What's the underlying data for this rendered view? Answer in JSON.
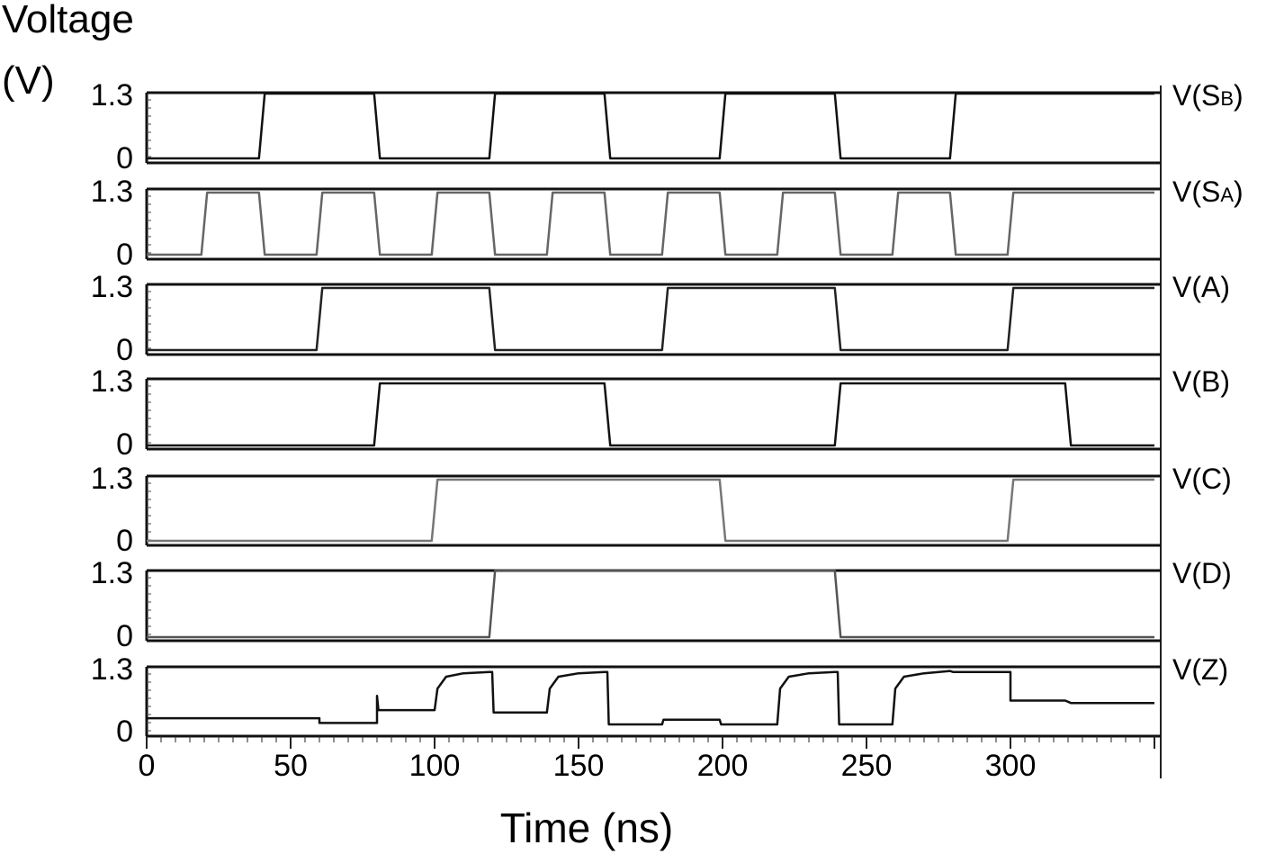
{
  "chart_data": {
    "type": "line",
    "ylabel_line1": "Voltage",
    "ylabel_line2": "(V)",
    "xlabel": "Time (ns)",
    "xlim": [
      0,
      350
    ],
    "xticks": [
      "0",
      "50",
      "100",
      "150",
      "200",
      "250",
      "300"
    ],
    "ytick_high": "1.3",
    "ytick_low": "0",
    "ylim": [
      0,
      1.3
    ],
    "series": [
      {
        "name": "V(SB)",
        "label_main": "V(S",
        "label_sub": "B",
        "label_close": ")",
        "color": "#111111",
        "x": [
          0,
          39,
          41,
          79,
          81,
          119,
          121,
          159,
          161,
          199,
          201,
          239,
          241,
          279,
          281,
          350
        ],
        "y": [
          0,
          0,
          1.3,
          1.3,
          0,
          0,
          1.3,
          1.3,
          0,
          0,
          1.3,
          1.3,
          0,
          0,
          1.3,
          1.3
        ]
      },
      {
        "name": "V(SA)",
        "label_main": "V(S",
        "label_sub": "A",
        "label_close": ")",
        "color": "#666666",
        "x": [
          0,
          19,
          21,
          39,
          41,
          59,
          61,
          79,
          81,
          99,
          101,
          119,
          121,
          139,
          141,
          159,
          161,
          179,
          181,
          199,
          201,
          219,
          221,
          239,
          241,
          259,
          261,
          279,
          281,
          299,
          301,
          350
        ],
        "y": [
          0,
          0,
          1.3,
          1.3,
          0,
          0,
          1.3,
          1.3,
          0,
          0,
          1.3,
          1.3,
          0,
          0,
          1.3,
          1.3,
          0,
          0,
          1.3,
          1.3,
          0,
          0,
          1.3,
          1.3,
          0,
          0,
          1.3,
          1.3,
          0,
          0,
          1.3,
          1.3
        ]
      },
      {
        "name": "V(A)",
        "label_main": "V(A)",
        "label_sub": "",
        "label_close": "",
        "color": "#222222",
        "x": [
          0,
          59,
          61,
          119,
          121,
          179,
          181,
          239,
          241,
          299,
          301,
          350
        ],
        "y": [
          0,
          0,
          1.3,
          1.3,
          0,
          0,
          1.3,
          1.3,
          0,
          0,
          1.3,
          1.3
        ]
      },
      {
        "name": "V(B)",
        "label_main": "V(B)",
        "label_sub": "",
        "label_close": "",
        "color": "#111111",
        "x": [
          0,
          79,
          81,
          159,
          161,
          239,
          241,
          319,
          321,
          350
        ],
        "y": [
          0,
          0,
          1.3,
          1.3,
          0,
          0,
          1.3,
          1.3,
          0,
          0
        ]
      },
      {
        "name": "V(C)",
        "label_main": "V(C)",
        "label_sub": "",
        "label_close": "",
        "color": "#777777",
        "x": [
          0,
          99,
          101,
          199,
          201,
          299,
          301,
          350
        ],
        "y": [
          0,
          0,
          1.3,
          1.3,
          0,
          0,
          1.3,
          1.3
        ]
      },
      {
        "name": "V(D)",
        "label_main": "V(D)",
        "label_sub": "",
        "label_close": "",
        "color": "#555555",
        "x": [
          0,
          119,
          121,
          239,
          241,
          350
        ],
        "y": [
          0,
          0,
          1.3,
          1.3,
          0,
          0
        ]
      },
      {
        "name": "V(Z)",
        "label_main": "V(Z)",
        "label_sub": "",
        "label_close": "",
        "color": "#111111",
        "x": [
          0,
          60,
          60,
          80,
          80,
          80.5,
          81,
          100,
          101,
          104,
          110,
          119,
          120,
          120.5,
          139,
          140,
          143,
          150,
          159,
          160,
          160.5,
          179,
          179.5,
          199,
          199.5,
          200,
          219,
          220,
          223,
          230,
          239,
          240,
          240.5,
          259,
          260,
          263,
          270,
          279,
          280,
          299,
          300,
          300,
          319,
          321,
          350
        ],
        "y": [
          0.28,
          0.28,
          0.18,
          0.18,
          0.75,
          0.45,
          0.45,
          0.45,
          0.9,
          1.15,
          1.22,
          1.25,
          1.25,
          0.4,
          0.4,
          0.9,
          1.15,
          1.22,
          1.25,
          1.25,
          0.15,
          0.15,
          0.25,
          0.25,
          0.15,
          0.15,
          0.15,
          0.9,
          1.15,
          1.22,
          1.25,
          1.25,
          0.15,
          0.15,
          0.9,
          1.15,
          1.22,
          1.27,
          1.25,
          1.25,
          1.25,
          0.65,
          0.65,
          0.6,
          0.6
        ]
      }
    ]
  }
}
